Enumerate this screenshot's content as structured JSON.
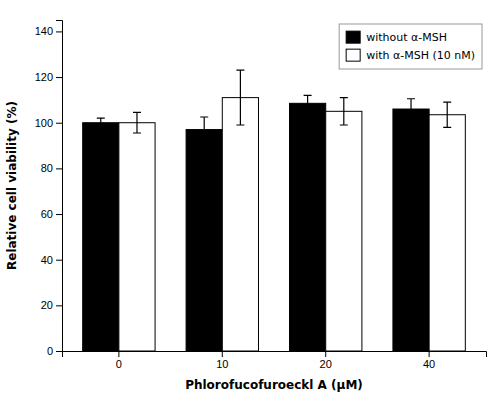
{
  "chart_data": {
    "type": "bar",
    "categories": [
      "0",
      "10",
      "20",
      "40"
    ],
    "series": [
      {
        "name": "without α-MSH",
        "color": "#000000",
        "values": [
          100.0,
          97.0,
          108.5,
          106.0
        ],
        "errors": [
          2.0,
          5.5,
          3.5,
          4.5
        ]
      },
      {
        "name": "with α-MSH (10 nM)",
        "color": "#ffffff",
        "values": [
          100.0,
          111.0,
          105.0,
          103.5
        ],
        "errors": [
          4.5,
          12.0,
          6.0,
          5.5
        ]
      }
    ],
    "xlabel": "Phlorofucofuroeckl A (μM)",
    "ylabel": "Relative cell viability (%)",
    "ylim": [
      0,
      145
    ],
    "yticks": [
      0,
      20,
      40,
      60,
      80,
      100,
      120,
      140
    ],
    "legend": "upper right",
    "grid": false
  }
}
